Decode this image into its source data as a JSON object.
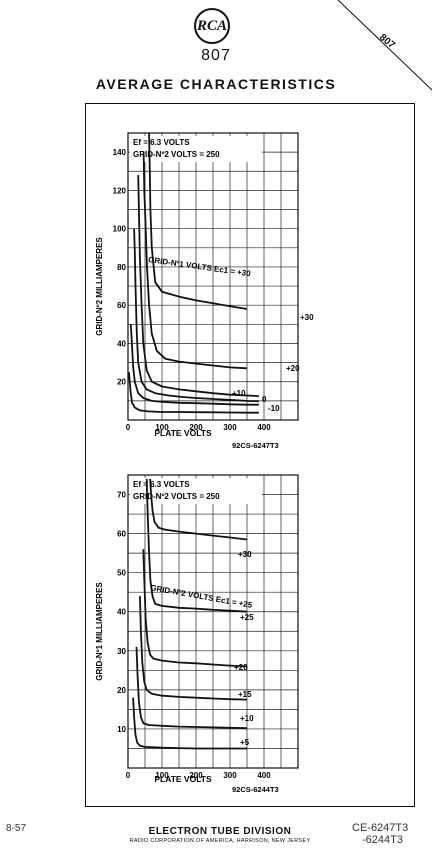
{
  "header": {
    "logo": "RCA",
    "tube_type": "807",
    "corner_tag": "807",
    "title": "AVERAGE CHARACTERISTICS"
  },
  "chart_data": [
    {
      "type": "line",
      "conditions": [
        "Ef = 6.3 VOLTS",
        "GRID-Nº2 VOLTS = 250"
      ],
      "xlabel": "PLATE VOLTS",
      "ylabel": "GRID-Nº2 MILLIAMPERES",
      "xlim": [
        0,
        500
      ],
      "ylim": [
        0,
        150
      ],
      "x_ticks": [
        "0",
        "100",
        "200",
        "300",
        "400"
      ],
      "y_ticks": [
        "20",
        "40",
        "60",
        "80",
        "100",
        "120",
        "140"
      ],
      "grid": true,
      "family_label": "GRID-Nº1 VOLTS Ec1 = +30",
      "curve_label_ref": "92CS-6247T3",
      "series": [
        {
          "name": "+30",
          "label_x": 340,
          "x": [
            62,
            64,
            66,
            70,
            80,
            100,
            150,
            200,
            250,
            300,
            350
          ],
          "y": [
            150,
            130,
            110,
            90,
            72,
            67,
            64.5,
            62.5,
            61,
            59.5,
            58
          ]
        },
        {
          "name": "+20",
          "label_x": 340,
          "x": [
            46,
            48,
            52,
            56,
            62,
            70,
            85,
            110,
            150,
            200,
            250,
            300,
            350
          ],
          "y": [
            140,
            120,
            100,
            80,
            60,
            45,
            36,
            32,
            30.5,
            29.5,
            28.5,
            27.5,
            27
          ]
        },
        {
          "name": "",
          "x": [
            30,
            32,
            35,
            40,
            45,
            55,
            70,
            100,
            150,
            200,
            250,
            300,
            350,
            385
          ],
          "y": [
            128,
            110,
            85,
            60,
            40,
            26,
            20,
            17.5,
            16,
            15,
            14,
            13.2,
            12.8,
            12.5
          ]
        },
        {
          "name": "+10",
          "x": [
            18,
            20,
            22,
            26,
            30,
            40,
            55,
            80,
            120,
            160,
            200,
            250,
            300,
            350,
            385
          ],
          "y": [
            100,
            88,
            70,
            45,
            30,
            20,
            16,
            14,
            12.8,
            12,
            11.5,
            11,
            10.5,
            10,
            9.8
          ]
        },
        {
          "name": "0",
          "label_x": 390,
          "x": [
            8,
            10,
            12,
            15,
            20,
            30,
            45,
            70,
            100,
            150,
            200,
            250,
            300,
            350,
            385
          ],
          "y": [
            50,
            45,
            38,
            28,
            20,
            14,
            11.5,
            10,
            9.5,
            9,
            8.8,
            8.5,
            8.2,
            8,
            8
          ]
        },
        {
          "name": "-10",
          "label_x": 390,
          "x": [
            3,
            5,
            8,
            12,
            20,
            35,
            60,
            100,
            150,
            200,
            250,
            300,
            350,
            385
          ],
          "y": [
            25,
            20,
            14,
            9,
            6.5,
            5,
            4.5,
            4.2,
            4.2,
            4.1,
            4,
            3.9,
            3.8,
            3.8
          ]
        }
      ]
    },
    {
      "type": "line",
      "conditions": [
        "Ef = 6.3 VOLTS",
        "GRID-Nº2 VOLTS = 250"
      ],
      "xlabel": "PLATE VOLTS",
      "ylabel": "GRID-Nº1 MILLIAMPERES",
      "xlim": [
        0,
        500
      ],
      "ylim": [
        0,
        75
      ],
      "x_ticks": [
        "0",
        "100",
        "200",
        "300",
        "400"
      ],
      "y_ticks": [
        "10",
        "20",
        "30",
        "40",
        "50",
        "60",
        "70"
      ],
      "grid": true,
      "family_label": "GRID-Nº2 VOLTS Ec1 = +25",
      "curve_label_ref": "92CS-6244T3",
      "series": [
        {
          "name": "+30",
          "x": [
            65,
            68,
            72,
            78,
            90,
            110,
            150,
            200,
            250,
            300,
            350
          ],
          "y": [
            74,
            70,
            66,
            63,
            61.5,
            61,
            60.5,
            60,
            59.5,
            59,
            58.5
          ]
        },
        {
          "name": "+25",
          "x": [
            55,
            58,
            62,
            66,
            72,
            80,
            100,
            150,
            200,
            250,
            300,
            350
          ],
          "y": [
            74,
            65,
            55,
            48,
            44,
            42,
            41.5,
            41,
            40.8,
            40.5,
            40.3,
            40
          ]
        },
        {
          "name": "+20",
          "x": [
            45,
            48,
            52,
            58,
            65,
            75,
            100,
            150,
            200,
            250,
            300,
            350
          ],
          "y": [
            56,
            48,
            38,
            32,
            29,
            28,
            27.5,
            27,
            26.8,
            26.5,
            26.2,
            26
          ]
        },
        {
          "name": "+15",
          "x": [
            35,
            38,
            42,
            48,
            55,
            70,
            100,
            150,
            200,
            250,
            300,
            350
          ],
          "y": [
            44,
            35,
            27,
            22,
            20,
            19,
            18.5,
            18.2,
            18,
            17.8,
            17.6,
            17.5
          ]
        },
        {
          "name": "+10",
          "x": [
            25,
            28,
            32,
            38,
            45,
            60,
            100,
            150,
            200,
            250,
            300,
            350
          ],
          "y": [
            31,
            24,
            17,
            13,
            11.5,
            11,
            10.8,
            10.6,
            10.5,
            10.4,
            10.3,
            10.2
          ]
        },
        {
          "name": "+5",
          "x": [
            15,
            18,
            22,
            27,
            35,
            50,
            100,
            150,
            200,
            250,
            300,
            350
          ],
          "y": [
            18,
            13,
            8.5,
            6.5,
            5.7,
            5.4,
            5.2,
            5.1,
            5,
            5,
            5,
            5
          ]
        }
      ]
    }
  ],
  "footer": {
    "date": "8-57",
    "division": "ELECTRON TUBE DIVISION",
    "corporation": "RADIO CORPORATION OF AMERICA, HARRISON, NEW JERSEY",
    "ref1": "CE-6247T3",
    "ref2": "-6244T3"
  }
}
